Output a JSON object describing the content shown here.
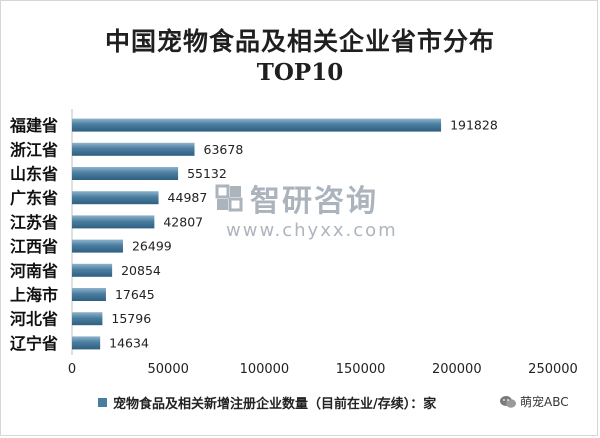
{
  "chart_data": {
    "type": "bar",
    "orientation": "horizontal",
    "title": "中国宠物食品及相关企业省市分布",
    "subtitle": "TOP10",
    "categories": [
      "福建省",
      "浙江省",
      "山东省",
      "广东省",
      "江苏省",
      "江西省",
      "河南省",
      "上海市",
      "河北省",
      "辽宁省"
    ],
    "series": [
      {
        "name": "宠物食品及相关新增注册企业数量（目前在业/存续）：家",
        "values": [
          191828,
          63678,
          55132,
          44987,
          42807,
          26499,
          20854,
          17645,
          15796,
          14634
        ]
      }
    ],
    "xlim": [
      0,
      250000
    ],
    "xticks": [
      "0",
      "50000",
      "100000",
      "150000",
      "200000",
      "250000"
    ],
    "grid": false,
    "legend_position": "bottom",
    "bar_color": "#4a7ea0"
  },
  "watermark": {
    "brand": "智研咨询",
    "url": "www.chyxx.com"
  },
  "source_tag": "萌宠ABC"
}
